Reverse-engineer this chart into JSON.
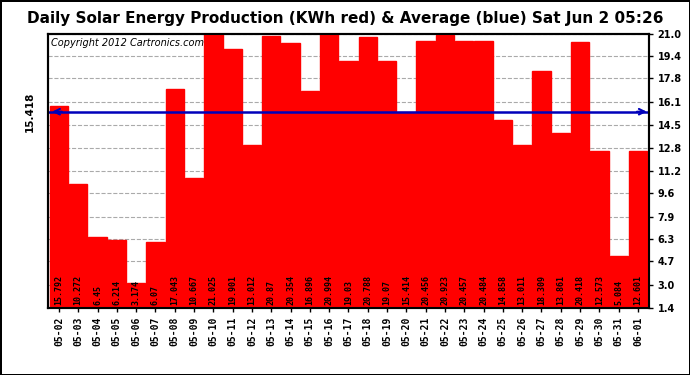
{
  "title": "Daily Solar Energy Production (KWh red) & Average (blue) Sat Jun 2 05:26",
  "copyright": "Copyright 2012 Cartronics.com",
  "average": 15.418,
  "bar_color": "#FF0000",
  "avg_line_color": "#0000BB",
  "background_color": "#FFFFFF",
  "plot_bg_color": "#FFFFFF",
  "grid_color": "#AAAAAA",
  "ylim": [
    1.4,
    21.0
  ],
  "yticks": [
    1.4,
    3.0,
    4.7,
    6.3,
    7.9,
    9.6,
    11.2,
    12.8,
    14.5,
    16.1,
    17.8,
    19.4,
    21.0
  ],
  "categories": [
    "05-02",
    "05-03",
    "05-04",
    "05-05",
    "05-06",
    "05-07",
    "05-08",
    "05-09",
    "05-10",
    "05-11",
    "05-12",
    "05-13",
    "05-14",
    "05-15",
    "05-16",
    "05-17",
    "05-18",
    "05-19",
    "05-20",
    "05-21",
    "05-22",
    "05-23",
    "05-24",
    "05-25",
    "05-26",
    "05-27",
    "05-28",
    "05-29",
    "05-30",
    "05-31",
    "06-01"
  ],
  "values": [
    15.792,
    10.272,
    6.45,
    6.214,
    3.174,
    6.07,
    17.043,
    10.667,
    21.025,
    19.901,
    13.012,
    20.87,
    20.354,
    16.896,
    20.994,
    19.03,
    20.788,
    19.07,
    15.414,
    20.456,
    20.923,
    20.457,
    20.484,
    14.858,
    13.011,
    18.309,
    13.861,
    20.418,
    12.573,
    5.084,
    12.601
  ],
  "avg_label": "15.418",
  "title_fontsize": 11,
  "tick_fontsize": 7,
  "bar_label_fontsize": 6,
  "copyright_fontsize": 7
}
